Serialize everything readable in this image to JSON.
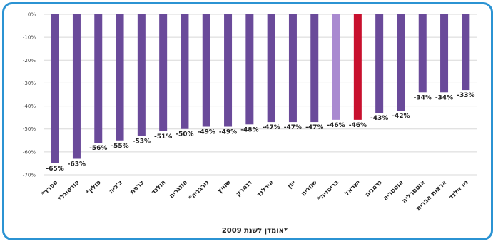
{
  "chart_data": {
    "type": "bar",
    "categories": [
      "ספרד*",
      "פורטוגל*",
      "פולין*",
      "צ'כיה",
      "צרפת",
      "הולנד",
      "הונגריה",
      "נורבגיה*",
      "שוויץ",
      "דנמרק",
      "אירלנד",
      "יפן",
      "שוודיה",
      "בריטניה*",
      "ישראל",
      "גרמניה",
      "אוסטריה",
      "אוסטרליה",
      "ארצות הברית",
      "ניו זילנד"
    ],
    "values": [
      -65,
      -63,
      -56,
      -55,
      -53,
      -51,
      -50,
      -49,
      -49,
      -48,
      -47,
      -47,
      -47,
      -46,
      -46,
      -43,
      -42,
      -34,
      -34,
      -33
    ],
    "data_labels": [
      "-65%",
      "-63%",
      "-56%",
      "-55%",
      "-53%",
      "-51%",
      "-50%",
      "-49%",
      "-49%",
      "-48%",
      "-47%",
      "-47%",
      "-47%",
      "-46%",
      "-46%",
      "-43%",
      "-42%",
      "-34%",
      "-34%",
      "-33%"
    ],
    "colors": [
      "#6a4a9a",
      "#6a4a9a",
      "#6a4a9a",
      "#6a4a9a",
      "#6a4a9a",
      "#6a4a9a",
      "#6a4a9a",
      "#6a4a9a",
      "#6a4a9a",
      "#6a4a9a",
      "#6a4a9a",
      "#6a4a9a",
      "#6a4a9a",
      "#a98ad0",
      "#c8102e",
      "#6a4a9a",
      "#6a4a9a",
      "#6a4a9a",
      "#6a4a9a",
      "#6a4a9a"
    ],
    "yticks": [
      "0%",
      "-10%",
      "-20%",
      "-30%",
      "-40%",
      "-50%",
      "-60%",
      "-70%"
    ],
    "ylim": [
      -70,
      0
    ],
    "grid": true,
    "footnote": "*אומדן לשנת 2009"
  },
  "colors": {
    "frame": "#2b93d3",
    "grid": "#d8d8d8"
  }
}
